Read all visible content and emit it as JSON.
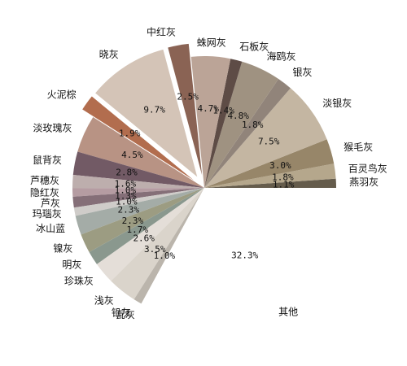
{
  "chart_data": {
    "type": "pie",
    "title": "",
    "start_angle_deg": 0,
    "direction": "counterclockwise",
    "slices": [
      {
        "label": "燕羽灰",
        "value": 1.1,
        "pct_label": "1.1%",
        "color": "#655c4c",
        "explode": 0
      },
      {
        "label": "百灵鸟灰",
        "value": 1.8,
        "pct_label": "1.8%",
        "color": "#b5a78c",
        "explode": 0
      },
      {
        "label": "猴毛灰",
        "value": 3.0,
        "pct_label": "3.0%",
        "color": "#978669",
        "explode": 0
      },
      {
        "label": "淡银灰",
        "value": 7.5,
        "pct_label": "7.5%",
        "color": "#c4b6a2",
        "explode": 0
      },
      {
        "label": "银灰",
        "value": 1.8,
        "pct_label": "1.8%",
        "color": "#91847a",
        "explode": 0
      },
      {
        "label": "海鸥灰",
        "value": 4.8,
        "pct_label": "4.8%",
        "color": "#9f9281",
        "explode": 0
      },
      {
        "label": "石板灰",
        "value": 1.4,
        "pct_label": "1.4%",
        "color": "#5e4c46",
        "explode": 0
      },
      {
        "label": "蛛网灰",
        "value": 4.7,
        "pct_label": "4.7%",
        "color": "#bba497",
        "explode": 0
      },
      {
        "label": "中红灰",
        "value": 2.5,
        "pct_label": "2.5%",
        "color": "#8a6354",
        "explode": 0.1
      },
      {
        "label": "晓灰",
        "value": 9.7,
        "pct_label": "9.7%",
        "color": "#d4c4b7",
        "explode": 0.1
      },
      {
        "label": "火泥棕",
        "value": 1.9,
        "pct_label": "1.9%",
        "color": "#b26d4e",
        "explode": 0.1
      },
      {
        "label": "淡玫瑰灰",
        "value": 4.5,
        "pct_label": "4.5%",
        "color": "#b89384",
        "explode": 0
      },
      {
        "label": "鼠背灰",
        "value": 2.8,
        "pct_label": "2.8%",
        "color": "#725a65",
        "explode": 0
      },
      {
        "label": "芦穗灰",
        "value": 1.6,
        "pct_label": "1.6%",
        "color": "#bdaead",
        "explode": 0
      },
      {
        "label": "隐红灰",
        "value": 1.0,
        "pct_label": "1.0%",
        "color": "#b59ca2",
        "explode": 0
      },
      {
        "label": "芦灰",
        "value": 1.3,
        "pct_label": "1.3%",
        "color": "#856f78",
        "explode": 0
      },
      {
        "label": "玛瑙灰",
        "value": 1.0,
        "pct_label": "1.0%",
        "color": "#cfccc9",
        "explode": 0
      },
      {
        "label": "冰山蓝",
        "value": 2.3,
        "pct_label": "2.3%",
        "color": "#a4aca7",
        "explode": 0
      },
      {
        "label": "镍灰",
        "value": 2.3,
        "pct_label": "2.3%",
        "color": "#9c9c82",
        "explode": 0
      },
      {
        "label": "明灰",
        "value": 1.7,
        "pct_label": "1.7%",
        "color": "#8a988e",
        "explode": 0
      },
      {
        "label": "珍珠灰",
        "value": 2.6,
        "pct_label": "2.6%",
        "color": "#e4ded8",
        "explode": 0
      },
      {
        "label": "浅灰",
        "value": 3.5,
        "pct_label": "3.5%",
        "color": "#dad4cb",
        "explode": 0
      },
      {
        "label": "铅灰",
        "value": 1.0,
        "pct_label": "1.0%",
        "color": "#bbb5ac",
        "explode": 0
      },
      {
        "label": "瓦灰",
        "value": 0.0,
        "pct_label": "",
        "color": "#867e76",
        "explode": 0
      },
      {
        "label": "其他",
        "value": 32.3,
        "pct_label": "32.3%",
        "color": "#ffffff",
        "explode": 0
      }
    ]
  }
}
